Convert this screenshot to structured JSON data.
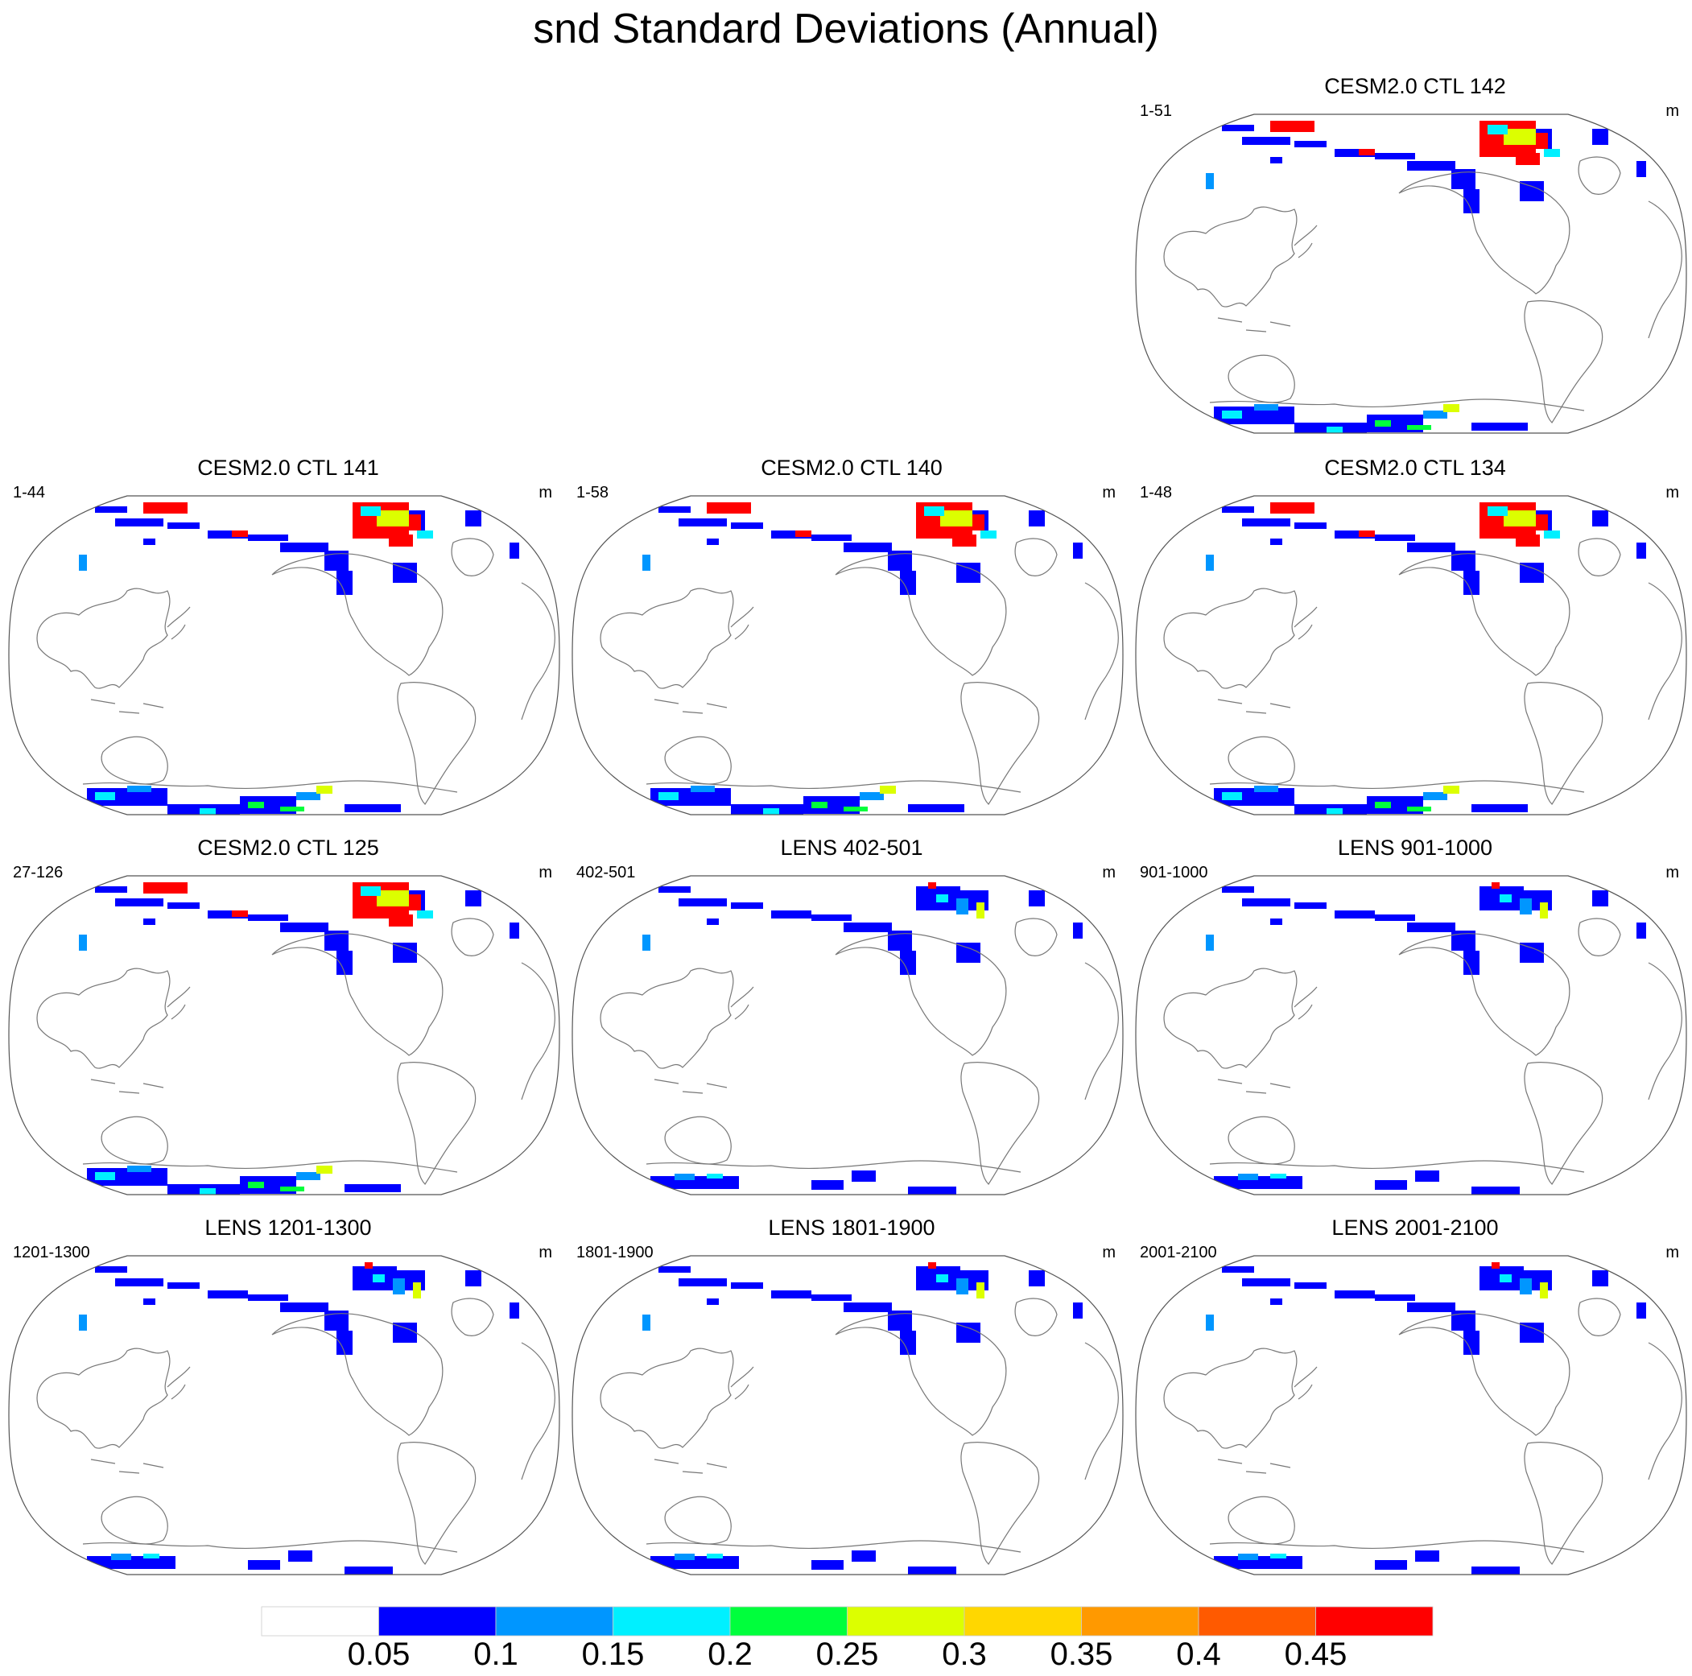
{
  "title": "snd Standard Deviations (Annual)",
  "panels": [
    {
      "id": "ctl142",
      "title": "CESM2.0 CTL 142",
      "left_label": "1-51",
      "units": "m",
      "col": 2,
      "row": 0,
      "north_high": true,
      "south_level": "full"
    },
    {
      "id": "ctl141",
      "title": "CESM2.0 CTL 141",
      "left_label": "1-44",
      "units": "m",
      "col": 0,
      "row": 1,
      "north_high": true,
      "south_level": "full"
    },
    {
      "id": "ctl140",
      "title": "CESM2.0 CTL 140",
      "left_label": "1-58",
      "units": "m",
      "col": 1,
      "row": 1,
      "north_high": true,
      "south_level": "full"
    },
    {
      "id": "ctl134",
      "title": "CESM2.0 CTL 134",
      "left_label": "1-48",
      "units": "m",
      "col": 2,
      "row": 1,
      "north_high": true,
      "south_level": "full"
    },
    {
      "id": "ctl125",
      "title": "CESM2.0 CTL 125",
      "left_label": "27-126",
      "units": "m",
      "col": 0,
      "row": 2,
      "north_high": true,
      "south_level": "full"
    },
    {
      "id": "lens402",
      "title": "LENS 402-501",
      "left_label": "402-501",
      "units": "m",
      "col": 1,
      "row": 2,
      "north_high": false,
      "south_level": "partial"
    },
    {
      "id": "lens901",
      "title": "LENS 901-1000",
      "left_label": "901-1000",
      "units": "m",
      "col": 2,
      "row": 2,
      "north_high": false,
      "south_level": "partial"
    },
    {
      "id": "lens1201",
      "title": "LENS 1201-1300",
      "left_label": "1201-1300",
      "units": "m",
      "col": 0,
      "row": 3,
      "north_high": false,
      "south_level": "partial"
    },
    {
      "id": "lens1801",
      "title": "LENS 1801-1900",
      "left_label": "1801-1900",
      "units": "m",
      "col": 1,
      "row": 3,
      "north_high": false,
      "south_level": "partial"
    },
    {
      "id": "lens2001",
      "title": "LENS 2001-2100",
      "left_label": "2001-2100",
      "units": "m",
      "col": 2,
      "row": 3,
      "north_high": false,
      "south_level": "partial"
    }
  ],
  "colorbar": {
    "labels": [
      "0.05",
      "0.1",
      "0.15",
      "0.2",
      "0.25",
      "0.3",
      "0.35",
      "0.4",
      "0.45"
    ],
    "colors": [
      "#ffffff",
      "#0000ff",
      "#0096ff",
      "#00f0ff",
      "#00ff3c",
      "#dcff00",
      "#ffd700",
      "#ff9900",
      "#ff5a00",
      "#ff0000"
    ]
  }
}
